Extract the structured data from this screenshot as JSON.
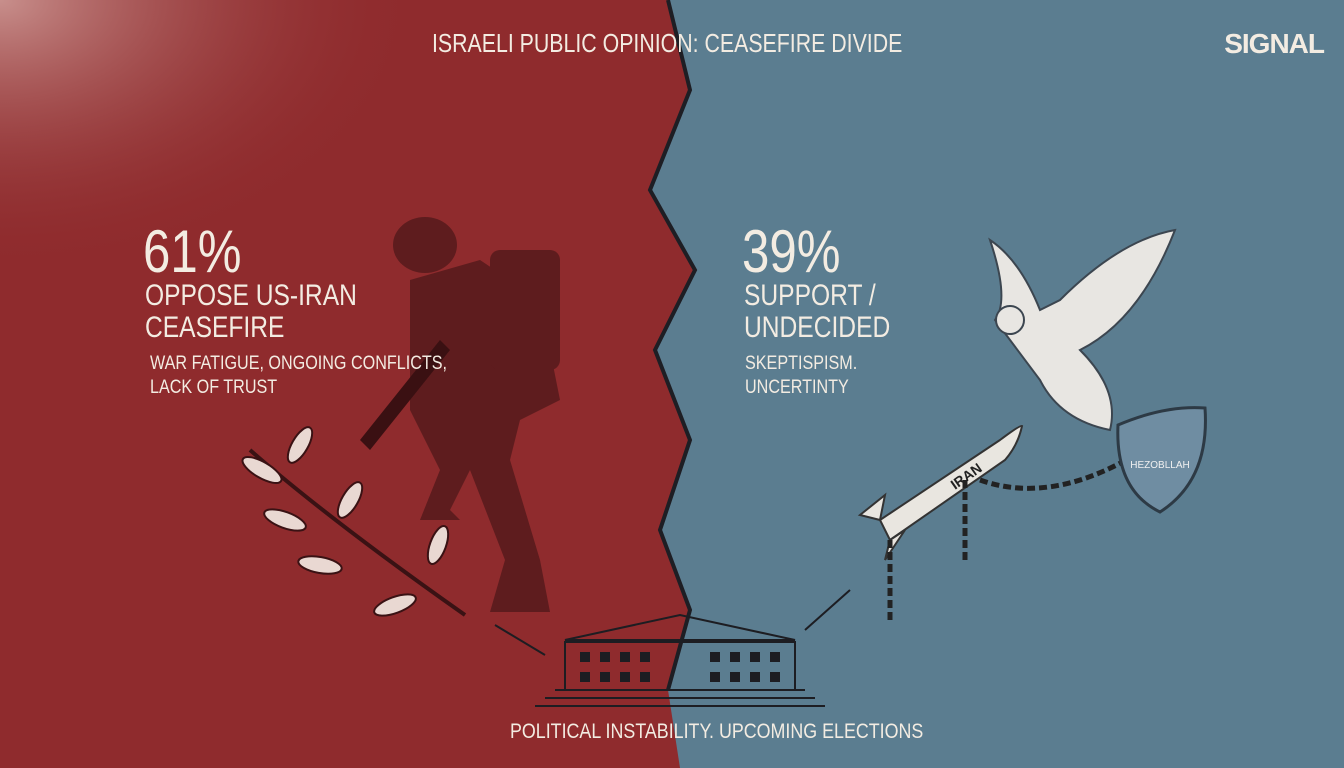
{
  "header": {
    "title": "ISRAELI PUBLIC OPINION: CEASEFIRE DIVIDE",
    "brand": "SIGNAL"
  },
  "left": {
    "percent": "61%",
    "label_lines": [
      "OPPOSE US-IRAN",
      "CEASEFIRE"
    ],
    "reason_lines": [
      "WAR FATIGUE, ONGOING CONFLICTS,",
      "LACK OF TRUST"
    ]
  },
  "right": {
    "percent": "39%",
    "label_lines": [
      "SUPPORT /",
      "UNDECIDED"
    ],
    "reason_lines": [
      "SKEPTISPISM.",
      "UNCERTINTY"
    ]
  },
  "illustration": {
    "missile_label": "IRAN",
    "shield_label": "HEZOBLLAH"
  },
  "footer": {
    "caption": "POLITICAL INSTABILITY. UPCOMING ELECTIONS"
  }
}
